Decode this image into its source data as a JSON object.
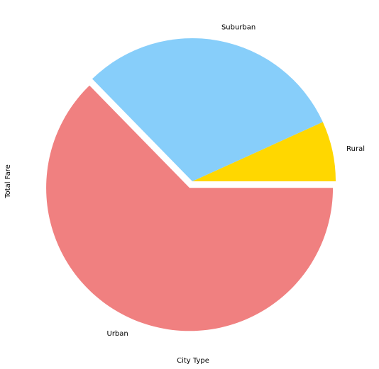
{
  "chart_data": {
    "type": "pie",
    "title": "",
    "xlabel": "City Type",
    "ylabel": "Total Fare",
    "categories": [
      "Rural",
      "Suburban",
      "Urban"
    ],
    "values": [
      6.8,
      30.5,
      62.7
    ],
    "explode": [
      0,
      0,
      0.05
    ],
    "colors": [
      "#FFD700",
      "#87CEFA",
      "#F08080"
    ],
    "start_angle_deg": 0,
    "direction": "counterclockwise",
    "legend": "none",
    "grid": false
  }
}
